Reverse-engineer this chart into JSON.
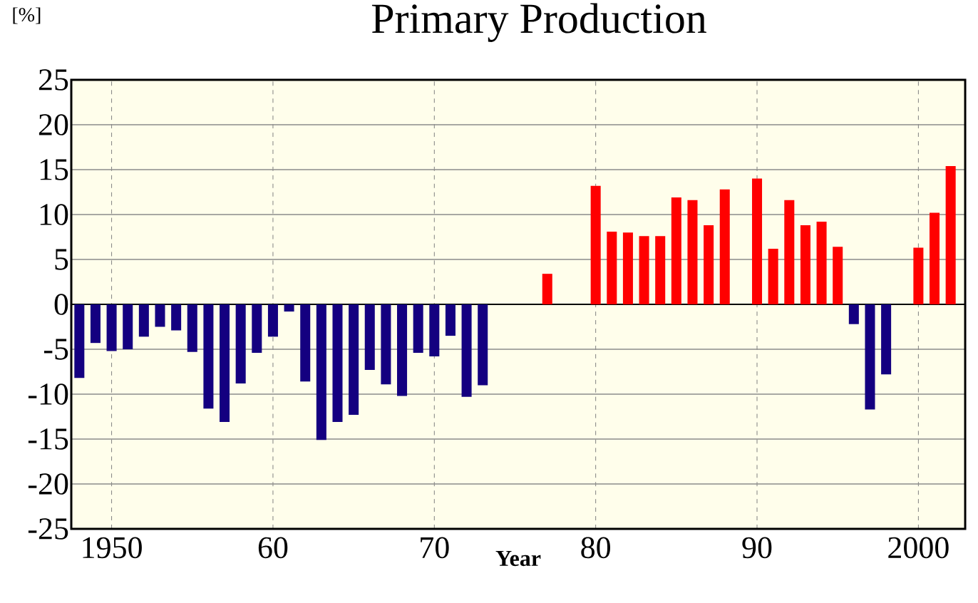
{
  "chart_data": {
    "type": "bar",
    "title": "Primary Production",
    "xlabel": "Year",
    "ylabel": "[%]",
    "x": [
      1948,
      1949,
      1950,
      1951,
      1952,
      1953,
      1954,
      1955,
      1956,
      1957,
      1958,
      1959,
      1960,
      1961,
      1962,
      1963,
      1964,
      1965,
      1966,
      1967,
      1968,
      1969,
      1970,
      1971,
      1972,
      1973,
      1974,
      1975,
      1976,
      1977,
      1978,
      1979,
      1980,
      1981,
      1982,
      1983,
      1984,
      1985,
      1986,
      1987,
      1988,
      1989,
      1990,
      1991,
      1992,
      1993,
      1994,
      1995,
      1996,
      1997,
      1998,
      1999,
      2000,
      2001,
      2002
    ],
    "values": [
      -8.2,
      -4.3,
      -5.2,
      -5.0,
      -3.6,
      -2.5,
      -2.9,
      -5.3,
      -11.6,
      -13.1,
      -8.8,
      -5.4,
      -3.6,
      -0.8,
      -8.6,
      -15.1,
      -13.1,
      -12.3,
      -7.3,
      -8.9,
      -10.2,
      -5.4,
      -5.8,
      -3.5,
      -10.3,
      -9,
      null,
      null,
      null,
      3.4,
      null,
      null,
      13.2,
      8.1,
      8.0,
      7.6,
      7.6,
      11.9,
      11.6,
      8.8,
      12.8,
      null,
      14,
      6.2,
      11.6,
      8.8,
      9.2,
      6.4,
      -2.2,
      -11.7,
      -7.8,
      null,
      6.3,
      10.2,
      15.4
    ],
    "colors": [
      "#140080",
      "#140080",
      "#140080",
      "#140080",
      "#140080",
      "#140080",
      "#140080",
      "#140080",
      "#140080",
      "#140080",
      "#140080",
      "#140080",
      "#140080",
      "#140080",
      "#140080",
      "#140080",
      "#140080",
      "#140080",
      "#140080",
      "#140080",
      "#140080",
      "#140080",
      "#140080",
      "#140080",
      "#140080",
      "#140080",
      "#140080",
      "#140080",
      "#140080",
      "#ff0000",
      "#ff0000",
      "#ff0000",
      "#ff0000",
      "#ff0000",
      "#ff0000",
      "#ff0000",
      "#ff0000",
      "#ff0000",
      "#ff0000",
      "#ff0000",
      "#ff0000",
      "#ff0000",
      "#ff0000",
      "#ff0000",
      "#ff0000",
      "#ff0000",
      "#ff0000",
      "#ff0000",
      "#140080",
      "#140080",
      "#140080",
      "#140080",
      "#ff0000",
      "#ff0000",
      "#ff0000"
    ],
    "xlim": [
      1947.5,
      2002.9
    ],
    "xticks": [
      {
        "value": 1950,
        "label": "1950"
      },
      {
        "value": 1960,
        "label": "60"
      },
      {
        "value": 1970,
        "label": "70"
      },
      {
        "value": 1980,
        "label": "80"
      },
      {
        "value": 1990,
        "label": "90"
      },
      {
        "value": 2000,
        "label": "2000"
      }
    ],
    "ylim": [
      -25,
      25
    ],
    "yticks": [
      -25,
      -20,
      -15,
      -10,
      -5,
      0,
      5,
      10,
      15,
      20,
      25
    ],
    "grid": true
  }
}
